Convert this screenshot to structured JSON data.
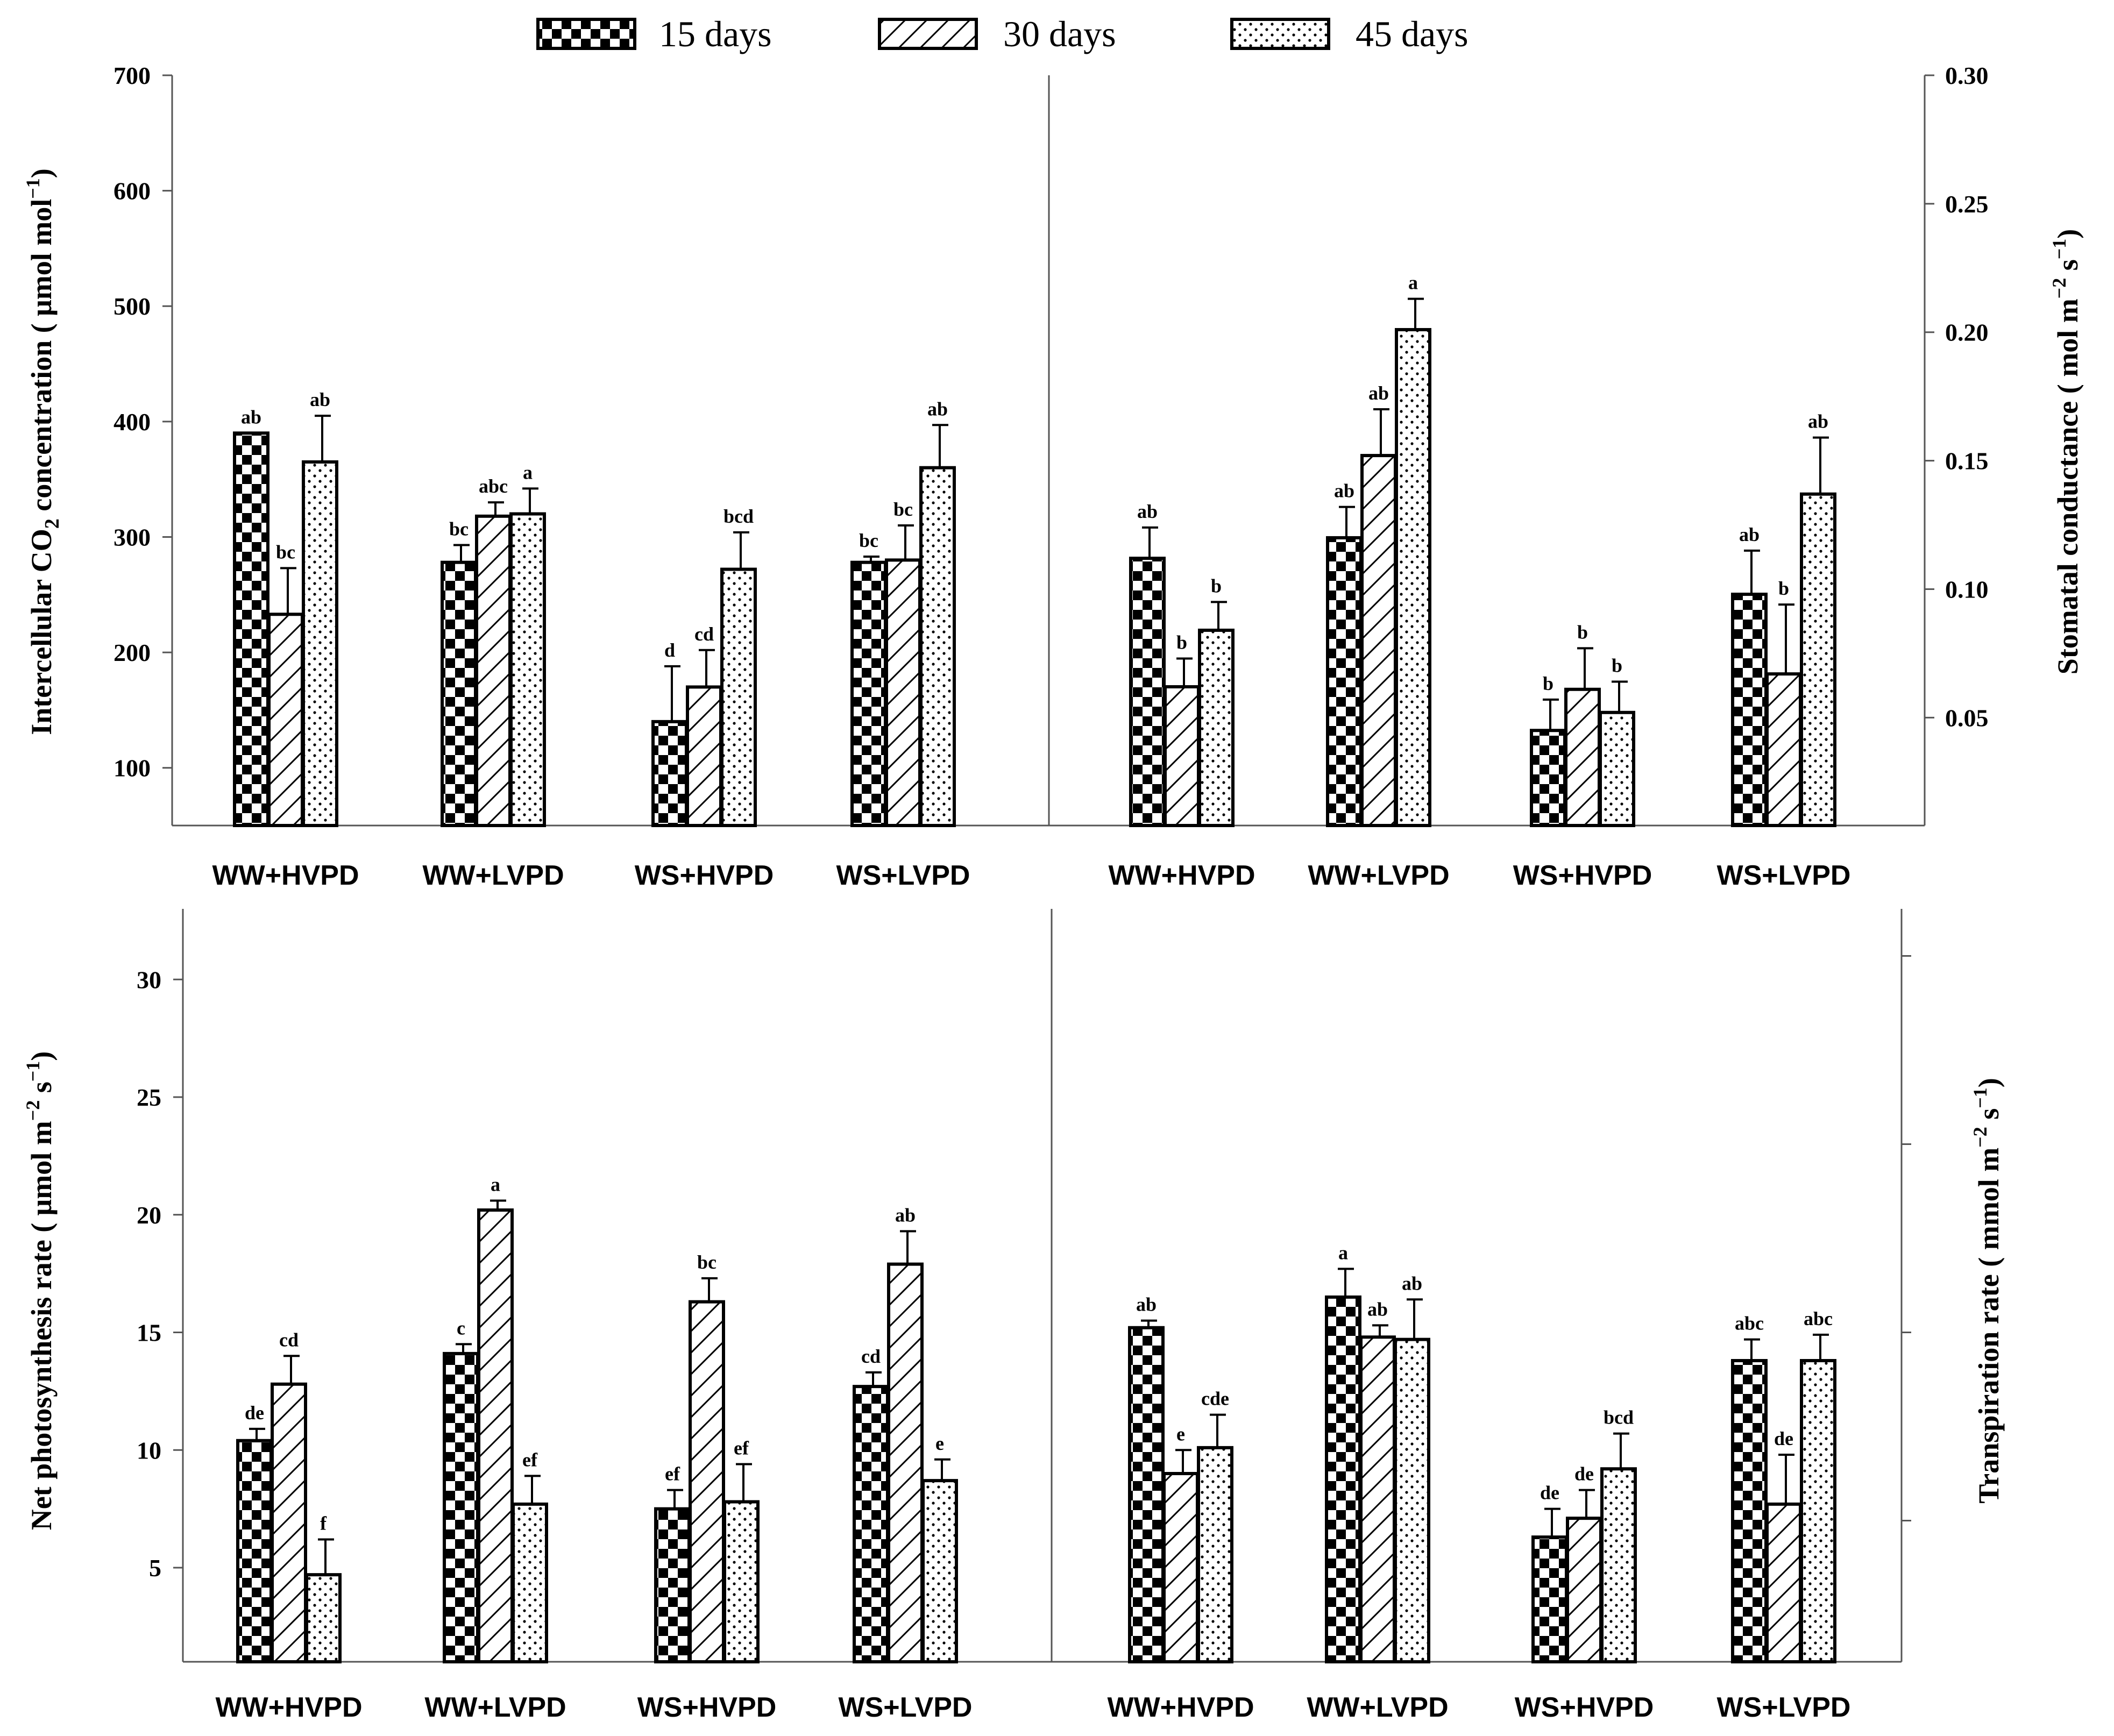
{
  "legend": [
    {
      "label": "15 days",
      "pattern": "checker"
    },
    {
      "label": "30 days",
      "pattern": "hatch"
    },
    {
      "label": "45 days",
      "pattern": "dots"
    }
  ],
  "colors": {
    "bar_fill": "#ffffff",
    "bar_stroke": "#000000",
    "axis": "#555555"
  },
  "chart_data": [
    {
      "type": "bar",
      "panel": "top-left",
      "ylabel": "Intercellular CO2 concentration ( μmol mol−1)",
      "ylabel_parts": {
        "pre": "Intercellular CO",
        "sub": "2",
        "mid": " concentration ( μmol mol",
        "sup": "−1",
        "post": ")"
      },
      "axis_side": "left",
      "ylim": [
        50,
        700
      ],
      "ticks": [
        100,
        200,
        300,
        400,
        500,
        600,
        700
      ],
      "tick_labels": [
        "100",
        "200",
        "300",
        "400",
        "500",
        "600",
        "700"
      ],
      "categories": [
        "WW+HVPD",
        "WW+LVPD",
        "WS+HVPD",
        "WS+LVPD"
      ],
      "series": [
        {
          "name": "15 days",
          "values": [
            390,
            278,
            140,
            278
          ],
          "errors": [
            0,
            15,
            48,
            5
          ],
          "labels": [
            "ab",
            "bc",
            "d",
            "bc"
          ]
        },
        {
          "name": "30 days",
          "values": [
            233,
            318,
            170,
            280
          ],
          "errors": [
            40,
            12,
            32,
            30
          ],
          "labels": [
            "bc",
            "abc",
            "cd",
            "bc"
          ]
        },
        {
          "name": "45 days",
          "values": [
            365,
            320,
            272,
            360
          ],
          "errors": [
            40,
            22,
            32,
            37
          ],
          "labels": [
            "ab",
            "a",
            "bcd",
            "ab"
          ]
        }
      ]
    },
    {
      "type": "bar",
      "panel": "top-right",
      "ylabel": "Stomatal conductance ( mol m−2 s−1)",
      "ylabel_parts": {
        "pre": "Stomatal conductance ( mol m",
        "sup": "−2",
        "mid": " s",
        "sup2": "−1",
        "post": ")"
      },
      "axis_side": "right",
      "ylim": [
        0.008,
        0.3
      ],
      "ticks": [
        0.05,
        0.1,
        0.15,
        0.2,
        0.25,
        0.3
      ],
      "tick_labels": [
        "0.05",
        "0.10",
        "0.15",
        "0.20",
        "0.25",
        "0.30"
      ],
      "categories": [
        "WW+HVPD",
        "WW+LVPD",
        "WS+HVPD",
        "WS+LVPD"
      ],
      "series": [
        {
          "name": "15 days",
          "values": [
            0.112,
            0.12,
            0.045,
            0.098
          ],
          "errors": [
            0.012,
            0.012,
            0.012,
            0.017
          ],
          "labels": [
            "ab",
            "ab",
            "b",
            "ab"
          ]
        },
        {
          "name": "30 days",
          "values": [
            0.062,
            0.152,
            0.061,
            0.067
          ],
          "errors": [
            0.011,
            0.018,
            0.016,
            0.027
          ],
          "labels": [
            "b",
            "ab",
            "b",
            "b"
          ]
        },
        {
          "name": "45 days",
          "values": [
            0.084,
            0.201,
            0.052,
            0.137
          ],
          "errors": [
            0.011,
            0.012,
            0.012,
            0.022
          ],
          "labels": [
            "b",
            "a",
            "b",
            "ab"
          ]
        }
      ]
    },
    {
      "type": "bar",
      "panel": "bottom-left",
      "ylabel": "Net photosynthesis rate ( μmol m−2 s−1)",
      "ylabel_parts": {
        "pre": "Net photosynthesis rate ( μmol m",
        "sup": "−2",
        "mid": " s",
        "sup2": "−1",
        "post": ")"
      },
      "axis_side": "left",
      "ylim": [
        1,
        33
      ],
      "ticks": [
        5,
        10,
        15,
        20,
        25,
        30
      ],
      "tick_labels": [
        "5",
        "10",
        "15",
        "20",
        "25",
        "30"
      ],
      "categories": [
        "WW+HVPD",
        "WW+LVPD",
        "WS+HVPD",
        "WS+LVPD"
      ],
      "series": [
        {
          "name": "15 days",
          "values": [
            10.4,
            14.1,
            7.5,
            12.7
          ],
          "errors": [
            0.5,
            0.4,
            0.8,
            0.6
          ],
          "labels": [
            "de",
            "c",
            "ef",
            "cd"
          ]
        },
        {
          "name": "30 days",
          "values": [
            12.8,
            20.2,
            16.3,
            17.9
          ],
          "errors": [
            1.2,
            0.4,
            1.0,
            1.4
          ],
          "labels": [
            "cd",
            "a",
            "bc",
            "ab"
          ]
        },
        {
          "name": "45 days",
          "values": [
            4.7,
            7.7,
            7.8,
            8.7
          ],
          "errors": [
            1.5,
            1.2,
            1.6,
            0.9
          ],
          "labels": [
            "f",
            "ef",
            "ef",
            "e"
          ]
        }
      ]
    },
    {
      "type": "bar",
      "panel": "bottom-right",
      "ylabel": "Transpiration rate ( mmol m−2 s−1)",
      "ylabel_parts": {
        "pre": "Transpiration rate ( mmol m",
        "sup": "−2",
        "mid": " s",
        "sup2": "−1",
        "post": ")"
      },
      "axis_side": "right",
      "ylim": [
        1,
        33
      ],
      "ticks": [
        7,
        15,
        23,
        31
      ],
      "tick_labels": [
        "",
        "",
        "",
        ""
      ],
      "categories": [
        "WW+HVPD",
        "WW+LVPD",
        "WS+HVPD",
        "WS+LVPD"
      ],
      "series": [
        {
          "name": "15 days",
          "values": [
            15.2,
            16.5,
            6.3,
            13.8
          ],
          "errors": [
            0.3,
            1.2,
            1.2,
            0.9
          ],
          "labels": [
            "ab",
            "a",
            "de",
            "abc"
          ]
        },
        {
          "name": "30 days",
          "values": [
            9.0,
            14.8,
            7.1,
            7.7
          ],
          "errors": [
            1.0,
            0.5,
            1.2,
            2.1
          ],
          "labels": [
            "e",
            "ab",
            "de",
            "de"
          ]
        },
        {
          "name": "45 days",
          "values": [
            10.1,
            14.7,
            9.2,
            13.8
          ],
          "errors": [
            1.4,
            1.7,
            1.5,
            1.1
          ],
          "labels": [
            "cde",
            "ab",
            "bcd",
            "abc"
          ]
        }
      ]
    }
  ]
}
